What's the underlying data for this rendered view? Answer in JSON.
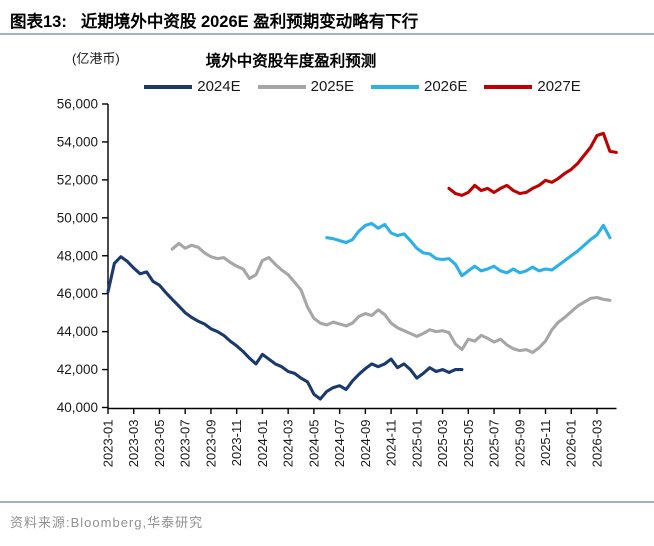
{
  "header": {
    "tag": "图表13:",
    "title": "近期境外中资股 2026E 盈利预期变动略有下行"
  },
  "footer": {
    "source_line": "资料来源:Bloomberg,华泰研究"
  },
  "chart_data": {
    "type": "line",
    "title": "境外中资股年度盈利预测",
    "unit_label": "(亿港币)",
    "xlabel": "",
    "ylabel": "(亿港币)",
    "ylim": [
      40000,
      56000
    ],
    "y_ticks": [
      40000,
      42000,
      44000,
      46000,
      48000,
      50000,
      52000,
      54000,
      56000
    ],
    "x_tick_labels": [
      "2023-01",
      "2023-03",
      "2023-05",
      "2023-07",
      "2023-09",
      "2023-11",
      "2024-01",
      "2024-03",
      "2024-05",
      "2024-07",
      "2024-09",
      "2024-11",
      "2025-01",
      "2025-03",
      "2025-05",
      "2025-07",
      "2025-09",
      "2025-11",
      "2026-01",
      "2026-03"
    ],
    "x_unit": "months since 2023-01, semi-monthly sampling",
    "grid": false,
    "legend_position": "top",
    "axis_color": "#000000",
    "series": [
      {
        "name": "2024E",
        "color": "#1b3a6b",
        "start_month": 0,
        "step_months": 0.5,
        "values": [
          46100,
          47600,
          47950,
          47700,
          47350,
          47050,
          47150,
          46650,
          46450,
          46050,
          45700,
          45350,
          45000,
          44750,
          44550,
          44400,
          44150,
          44000,
          43800,
          43500,
          43250,
          42950,
          42600,
          42300,
          42800,
          42550,
          42300,
          42150,
          41900,
          41800,
          41550,
          41350,
          40700,
          40450,
          40850,
          41050,
          41150,
          40950,
          41400,
          41750,
          42050,
          42300,
          42150,
          42300,
          42550,
          42100,
          42300,
          42000,
          41550,
          41800,
          42100,
          41900,
          42000,
          41850,
          42000,
          42000
        ]
      },
      {
        "name": "2025E",
        "color": "#a6a6a6",
        "start_month": 5,
        "step_months": 0.5,
        "values": [
          48350,
          48650,
          48400,
          48550,
          48450,
          48150,
          47950,
          47850,
          47900,
          47650,
          47450,
          47300,
          46800,
          47000,
          47750,
          47900,
          47550,
          47250,
          47000,
          46600,
          46200,
          45300,
          44700,
          44450,
          44350,
          44500,
          44400,
          44300,
          44450,
          44800,
          44950,
          44850,
          45150,
          44900,
          44450,
          44200,
          44050,
          43900,
          43750,
          43900,
          44100,
          44000,
          44050,
          43950,
          43350,
          43050,
          43600,
          43500,
          43800,
          43650,
          43450,
          43600,
          43300,
          43100,
          43000,
          43050,
          42900,
          43150,
          43500,
          44100,
          44500,
          44750,
          45050,
          45350,
          45550,
          45750,
          45800,
          45700,
          45650
        ]
      },
      {
        "name": "2026E",
        "color": "#2cb0e8",
        "start_month": 17,
        "step_months": 0.5,
        "values": [
          48950,
          48900,
          48800,
          48700,
          48850,
          49300,
          49600,
          49700,
          49450,
          49650,
          49200,
          49060,
          49150,
          48800,
          48400,
          48150,
          48100,
          47850,
          47800,
          47850,
          47550,
          46950,
          47200,
          47450,
          47200,
          47300,
          47450,
          47200,
          47100,
          47300,
          47100,
          47200,
          47400,
          47200,
          47300,
          47250,
          47500,
          47750,
          48000,
          48250,
          48550,
          48850,
          49100,
          49600,
          48950
        ]
      },
      {
        "name": "2027E",
        "color": "#c00000",
        "start_month": 26.5,
        "step_months": 0.5,
        "values": [
          51550,
          51280,
          51180,
          51340,
          51710,
          51440,
          51550,
          51340,
          51550,
          51710,
          51440,
          51280,
          51340,
          51550,
          51710,
          51970,
          51870,
          52080,
          52340,
          52550,
          52870,
          53290,
          53710,
          54340,
          54450,
          53500,
          53450
        ]
      }
    ]
  }
}
